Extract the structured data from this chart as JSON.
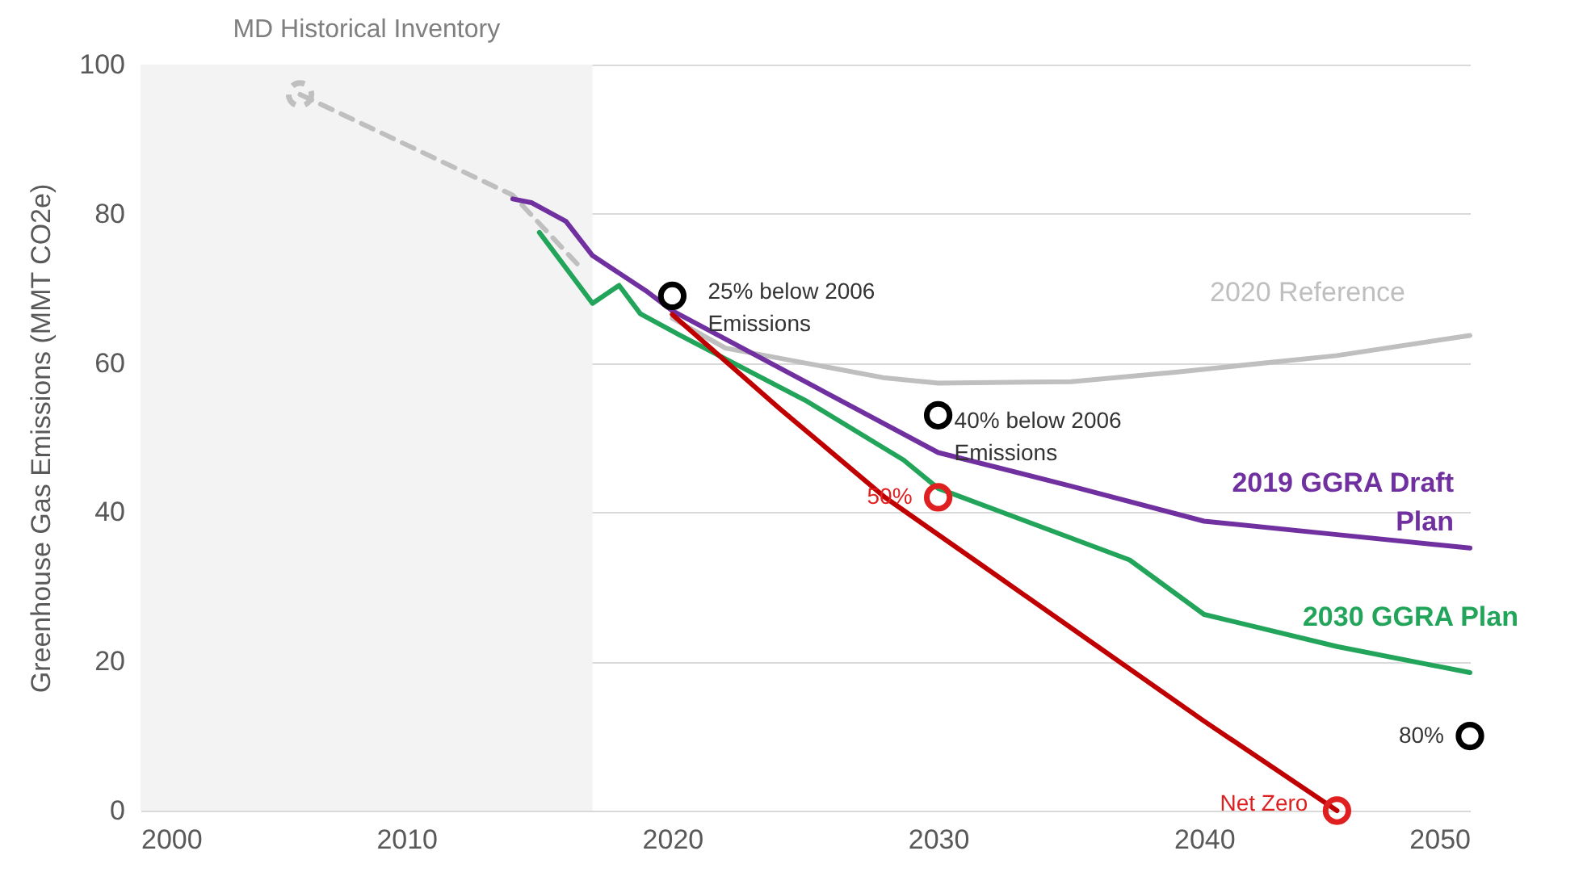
{
  "chart_data": {
    "type": "line",
    "ylabel": "Greenhouse Gas Emissions (MMT CO2e)",
    "xlim": [
      2000,
      2050
    ],
    "xticks": [
      2000,
      2010,
      2020,
      2030,
      2040,
      2050
    ],
    "ylim": [
      0,
      100
    ],
    "yticks": [
      0,
      20,
      40,
      60,
      80,
      100
    ],
    "grid": "y",
    "bands": [
      {
        "axis": "x",
        "from": 2000,
        "to": 2017,
        "label": "MD Historical Inventory",
        "color": "#f3f3f3"
      }
    ],
    "series": [
      {
        "name": "2020 Reference",
        "color": "#bfbfbf",
        "x": [
          2020,
          2022,
          2025,
          2028,
          2030,
          2035,
          2039,
          2045,
          2050
        ],
        "values": [
          66,
          62,
          60,
          58,
          57.3,
          57.5,
          58.8,
          61,
          63.7
        ]
      },
      {
        "color": "#bfbfbf",
        "line_style": "dashed",
        "x": [
          2006,
          2014,
          2016.5
        ],
        "values": [
          96,
          82.5,
          73
        ]
      },
      {
        "name": "2019 GGRA Draft Plan",
        "color": "#7030a0",
        "x": [
          2014,
          2014.7,
          2016,
          2017,
          2019,
          2020,
          2025,
          2030,
          2035,
          2040,
          2045,
          2050
        ],
        "values": [
          82,
          81.5,
          79,
          74.4,
          69.7,
          67,
          57.5,
          48,
          43.5,
          38.8,
          37,
          35.2
        ]
      },
      {
        "name": "2030 GGRA Plan",
        "color": "#22a55a",
        "x": [
          2015,
          2017,
          2018,
          2018.8,
          2020.3,
          2025,
          2028.7,
          2030,
          2037.2,
          2040,
          2045,
          2050
        ],
        "values": [
          77.5,
          68,
          70.4,
          66.6,
          63.7,
          55,
          47,
          43.2,
          33.6,
          26.3,
          22,
          18.5
        ]
      },
      {
        "color": "#c00000",
        "x": [
          2020,
          2024,
          2028,
          2032,
          2036,
          2040,
          2045
        ],
        "values": [
          66.5,
          54,
          42,
          32,
          22,
          12,
          0
        ]
      },
      {
        "type": "scatter",
        "marker": "circle",
        "color": "#000000",
        "x": [
          2020,
          2030,
          2050
        ],
        "values": [
          69,
          53,
          10
        ]
      },
      {
        "type": "scatter",
        "marker": "circle",
        "color": "#e02020",
        "x": [
          2030,
          2045
        ],
        "values": [
          42,
          0
        ]
      },
      {
        "type": "scatter",
        "marker": "circle",
        "line_style": "dashed",
        "color": "#bfbfbf",
        "x": [
          2006
        ],
        "values": [
          96
        ]
      }
    ],
    "annotations": [
      {
        "text": "25% below 2006 Emissions",
        "x": 2020,
        "y": 69
      },
      {
        "text": "40% below 2006 Emissions",
        "x": 2030,
        "y": 53
      },
      {
        "text": "50%",
        "x": 2030,
        "y": 42
      },
      {
        "text": "80%",
        "x": 2050,
        "y": 10
      },
      {
        "text": "Net Zero",
        "x": 2045,
        "y": 0
      }
    ]
  }
}
